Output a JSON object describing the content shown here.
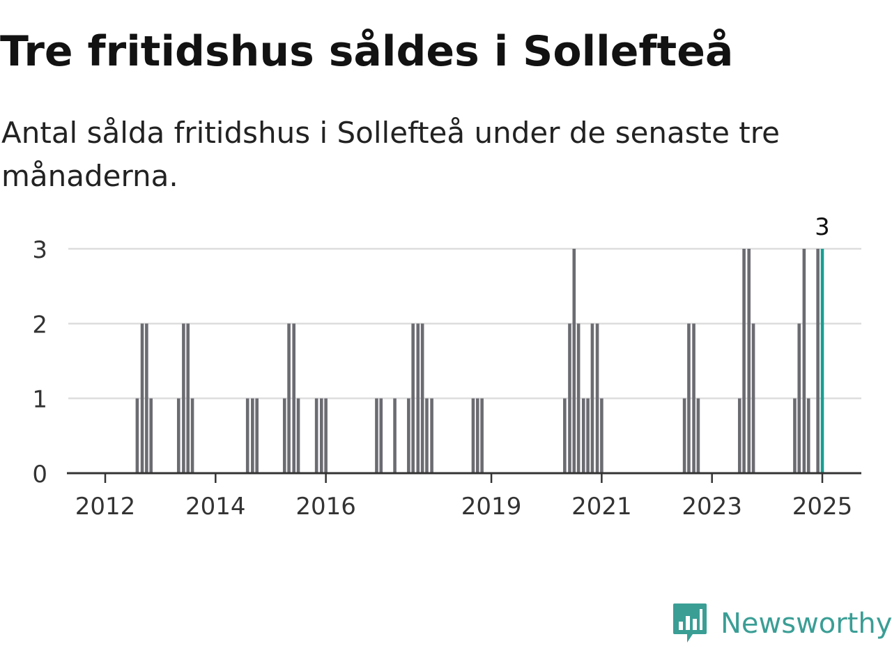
{
  "title": "Tre fritidshus såldes i Sollefteå",
  "subtitle": "Antal sålda fritidshus i Sollefteå under de senaste tre månaderna.",
  "brand": {
    "name": "Newsworthy",
    "icon": "newsworthy-bar-chart-logo-icon",
    "color": "#3a9e95"
  },
  "chart_data": {
    "type": "bar",
    "title": "Tre fritidshus såldes i Sollefteå",
    "subtitle": "Antal sålda fritidshus i Sollefteå under de senaste tre månaderna.",
    "xlabel": "",
    "ylabel": "",
    "y_ticks": [
      0,
      1,
      2,
      3
    ],
    "ylim": [
      0,
      3
    ],
    "x_ticks": [
      "2012",
      "2014",
      "2016",
      "2019",
      "2021",
      "2023",
      "2025"
    ],
    "x_tick_positions": [
      2012.0,
      2014.0,
      2016.0,
      2019.0,
      2021.0,
      2023.0,
      2025.0
    ],
    "xlim": [
      2011.4,
      2025.7
    ],
    "grid": true,
    "bar_color": "#6b6b72",
    "highlight_color": "#1a9e93",
    "highlight_label": "3",
    "series": [
      {
        "values": [
          {
            "x": 2012.58,
            "y": 1
          },
          {
            "x": 2012.67,
            "y": 2
          },
          {
            "x": 2012.75,
            "y": 2
          },
          {
            "x": 2012.83,
            "y": 1
          },
          {
            "x": 2013.33,
            "y": 1
          },
          {
            "x": 2013.42,
            "y": 2
          },
          {
            "x": 2013.5,
            "y": 2
          },
          {
            "x": 2013.58,
            "y": 1
          },
          {
            "x": 2014.58,
            "y": 1
          },
          {
            "x": 2014.67,
            "y": 1
          },
          {
            "x": 2014.75,
            "y": 1
          },
          {
            "x": 2015.25,
            "y": 1
          },
          {
            "x": 2015.33,
            "y": 2
          },
          {
            "x": 2015.42,
            "y": 2
          },
          {
            "x": 2015.5,
            "y": 1
          },
          {
            "x": 2015.83,
            "y": 1
          },
          {
            "x": 2015.92,
            "y": 1
          },
          {
            "x": 2016.0,
            "y": 1
          },
          {
            "x": 2016.92,
            "y": 1
          },
          {
            "x": 2017.0,
            "y": 1
          },
          {
            "x": 2017.25,
            "y": 1
          },
          {
            "x": 2017.5,
            "y": 1
          },
          {
            "x": 2017.58,
            "y": 2
          },
          {
            "x": 2017.67,
            "y": 2
          },
          {
            "x": 2017.75,
            "y": 2
          },
          {
            "x": 2017.83,
            "y": 1
          },
          {
            "x": 2017.92,
            "y": 1
          },
          {
            "x": 2018.67,
            "y": 1
          },
          {
            "x": 2018.75,
            "y": 1
          },
          {
            "x": 2018.83,
            "y": 1
          },
          {
            "x": 2020.33,
            "y": 1
          },
          {
            "x": 2020.42,
            "y": 2
          },
          {
            "x": 2020.5,
            "y": 3
          },
          {
            "x": 2020.58,
            "y": 2
          },
          {
            "x": 2020.67,
            "y": 1
          },
          {
            "x": 2020.75,
            "y": 1
          },
          {
            "x": 2020.83,
            "y": 2
          },
          {
            "x": 2020.92,
            "y": 2
          },
          {
            "x": 2021.0,
            "y": 1
          },
          {
            "x": 2022.5,
            "y": 1
          },
          {
            "x": 2022.58,
            "y": 2
          },
          {
            "x": 2022.67,
            "y": 2
          },
          {
            "x": 2022.75,
            "y": 1
          },
          {
            "x": 2023.5,
            "y": 1
          },
          {
            "x": 2023.58,
            "y": 3
          },
          {
            "x": 2023.67,
            "y": 3
          },
          {
            "x": 2023.75,
            "y": 2
          },
          {
            "x": 2024.5,
            "y": 1
          },
          {
            "x": 2024.58,
            "y": 2
          },
          {
            "x": 2024.67,
            "y": 3
          },
          {
            "x": 2024.75,
            "y": 1
          },
          {
            "x": 2024.92,
            "y": 3
          },
          {
            "x": 2025.0,
            "y": 3,
            "highlight": true
          }
        ]
      }
    ]
  }
}
